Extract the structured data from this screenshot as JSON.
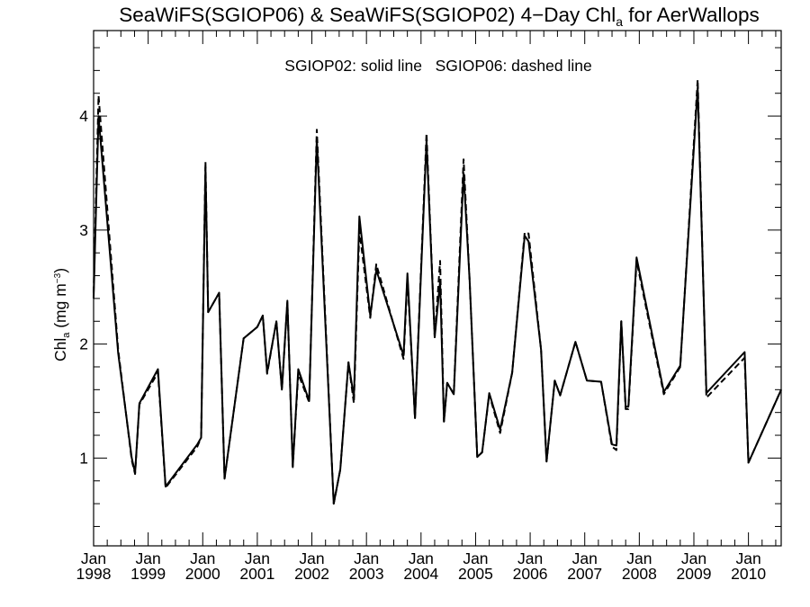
{
  "chart_data": {
    "type": "line",
    "title": {
      "prefix": "SeaWiFS(SGIOP06) & SeaWiFS(SGIOP02) 4−Day Chl",
      "subscript": "a",
      "suffix": " for AerWallops"
    },
    "ylabel": {
      "base": "Chl",
      "subscript": "a",
      "unit_prefix": " (mg m",
      "unit_exponent": "−3",
      "unit_suffix": ")"
    },
    "xlabel": "",
    "annotation": "SGIOP02: solid line   SGIOP06: dashed line",
    "xlim": [
      1998.0,
      2010.6
    ],
    "ylim": [
      0.23,
      4.75
    ],
    "yticks": [
      1,
      2,
      3,
      4
    ],
    "xticks": [
      {
        "x": 1998,
        "month": "Jan",
        "year": "1998"
      },
      {
        "x": 1999,
        "month": "Jan",
        "year": "1999"
      },
      {
        "x": 2000,
        "month": "Jan",
        "year": "2000"
      },
      {
        "x": 2001,
        "month": "Jan",
        "year": "2001"
      },
      {
        "x": 2002,
        "month": "Jan",
        "year": "2002"
      },
      {
        "x": 2003,
        "month": "Jan",
        "year": "2003"
      },
      {
        "x": 2004,
        "month": "Jan",
        "year": "2004"
      },
      {
        "x": 2005,
        "month": "Jan",
        "year": "2005"
      },
      {
        "x": 2006,
        "month": "Jan",
        "year": "2006"
      },
      {
        "x": 2007,
        "month": "Jan",
        "year": "2007"
      },
      {
        "x": 2008,
        "month": "Jan",
        "year": "2008"
      },
      {
        "x": 2009,
        "month": "Jan",
        "year": "2009"
      },
      {
        "x": 2010,
        "month": "Jan",
        "year": "2010"
      }
    ],
    "grid": false,
    "series": [
      {
        "name": "SGIOP02",
        "style": "solid",
        "color": "#000000",
        "x": [
          1998.0,
          1998.09,
          1998.45,
          1998.7,
          1998.76,
          1998.84,
          1999.18,
          1999.32,
          1999.9,
          1999.97,
          2000.05,
          2000.1,
          2000.3,
          2000.4,
          2000.75,
          2001.0,
          2001.05,
          2001.1,
          2001.18,
          2001.35,
          2001.45,
          2001.55,
          2001.65,
          2001.75,
          2001.95,
          2002.09,
          2002.4,
          2002.52,
          2002.67,
          2002.77,
          2002.87,
          2003.07,
          2003.18,
          2003.68,
          2003.75,
          2003.89,
          2004.1,
          2004.25,
          2004.35,
          2004.42,
          2004.48,
          2004.6,
          2004.78,
          2004.89,
          2005.03,
          2005.12,
          2005.25,
          2005.45,
          2005.67,
          2005.9,
          2005.97,
          2006.2,
          2006.3,
          2006.45,
          2006.55,
          2006.83,
          2007.04,
          2007.3,
          2007.5,
          2007.58,
          2007.67,
          2007.75,
          2007.8,
          2007.95,
          2008.45,
          2008.75,
          2009.07,
          2009.23,
          2009.93,
          2010.0,
          2010.6
        ],
        "y": [
          2.4,
          4.0,
          1.92,
          1.0,
          0.87,
          1.48,
          1.78,
          0.75,
          1.12,
          1.18,
          3.55,
          2.28,
          2.45,
          0.82,
          2.05,
          2.15,
          2.2,
          2.25,
          1.75,
          2.2,
          1.6,
          2.38,
          0.92,
          1.78,
          1.5,
          3.8,
          0.6,
          0.9,
          1.84,
          1.53,
          3.12,
          2.25,
          2.65,
          1.9,
          2.62,
          1.35,
          3.78,
          2.06,
          2.55,
          1.32,
          1.66,
          1.56,
          3.5,
          2.56,
          1.01,
          1.05,
          1.57,
          1.25,
          1.75,
          2.95,
          2.9,
          1.95,
          0.97,
          1.68,
          1.55,
          2.02,
          1.68,
          1.67,
          1.12,
          1.11,
          2.2,
          1.45,
          1.45,
          2.76,
          1.58,
          1.81,
          4.25,
          1.57,
          1.93,
          0.96,
          1.6
        ]
      },
      {
        "name": "SGIOP06",
        "style": "dashed",
        "color": "#000000",
        "x": [
          1998.0,
          1998.09,
          1998.45,
          1998.7,
          1998.76,
          1998.84,
          1999.18,
          1999.32,
          1999.9,
          1999.97,
          2000.05,
          2000.1,
          2000.3,
          2000.4,
          2000.75,
          2001.0,
          2001.05,
          2001.1,
          2001.18,
          2001.35,
          2001.45,
          2001.55,
          2001.65,
          2001.75,
          2001.95,
          2002.09,
          2002.4,
          2002.52,
          2002.67,
          2002.77,
          2002.87,
          2003.07,
          2003.18,
          2003.68,
          2003.75,
          2003.89,
          2004.1,
          2004.25,
          2004.35,
          2004.42,
          2004.48,
          2004.6,
          2004.78,
          2004.89,
          2005.03,
          2005.12,
          2005.25,
          2005.45,
          2005.67,
          2005.9,
          2005.97,
          2006.2,
          2006.3,
          2006.45,
          2006.55,
          2006.83,
          2007.04,
          2007.3,
          2007.5,
          2007.58,
          2007.67,
          2007.75,
          2007.8,
          2007.95,
          2008.45,
          2008.75,
          2009.07,
          2009.23,
          2009.93,
          2010.0,
          2010.6
        ],
        "y": [
          2.45,
          4.18,
          1.95,
          0.98,
          0.86,
          1.47,
          1.75,
          0.74,
          1.1,
          1.18,
          3.6,
          2.28,
          2.45,
          0.82,
          2.05,
          2.15,
          2.2,
          2.25,
          1.74,
          2.2,
          1.6,
          2.37,
          0.93,
          1.74,
          1.49,
          3.88,
          0.6,
          0.9,
          1.84,
          1.48,
          3.0,
          2.23,
          2.7,
          1.87,
          2.58,
          1.35,
          3.85,
          2.06,
          2.73,
          1.32,
          1.66,
          1.56,
          3.62,
          2.56,
          1.01,
          1.05,
          1.56,
          1.22,
          1.75,
          2.98,
          2.97,
          1.95,
          0.97,
          1.68,
          1.55,
          2.02,
          1.68,
          1.67,
          1.1,
          1.07,
          2.2,
          1.43,
          1.43,
          2.73,
          1.56,
          1.8,
          4.32,
          1.53,
          1.88,
          0.96,
          1.6
        ]
      }
    ]
  }
}
